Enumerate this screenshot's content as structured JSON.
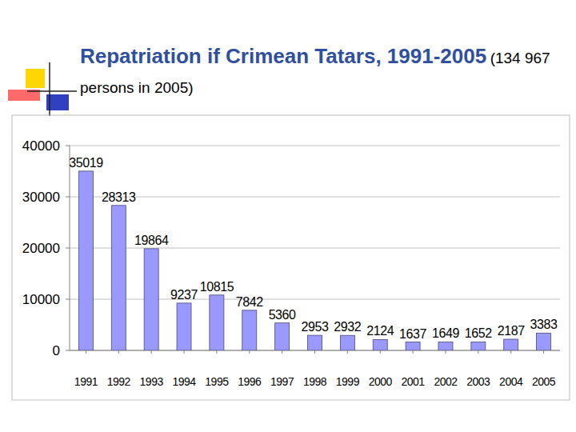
{
  "chart_data": {
    "type": "bar",
    "title": "Repatriation if Crimean Tatars, 1991-2005",
    "subtitle": "(134 967 persons in 2005)",
    "categories": [
      "1991",
      "1992",
      "1993",
      "1994",
      "1995",
      "1996",
      "1997",
      "1998",
      "1999",
      "2000",
      "2001",
      "2002",
      "2003",
      "2004",
      "2005"
    ],
    "values": [
      35019,
      28313,
      19864,
      9237,
      10815,
      7842,
      5360,
      2953,
      2932,
      2124,
      1637,
      1649,
      1652,
      2187,
      3383
    ],
    "color": "#9999ff",
    "ylim": [
      0,
      40000
    ],
    "yticks": [
      0,
      10000,
      20000,
      30000,
      40000
    ],
    "grid": true,
    "data_labels": true
  }
}
